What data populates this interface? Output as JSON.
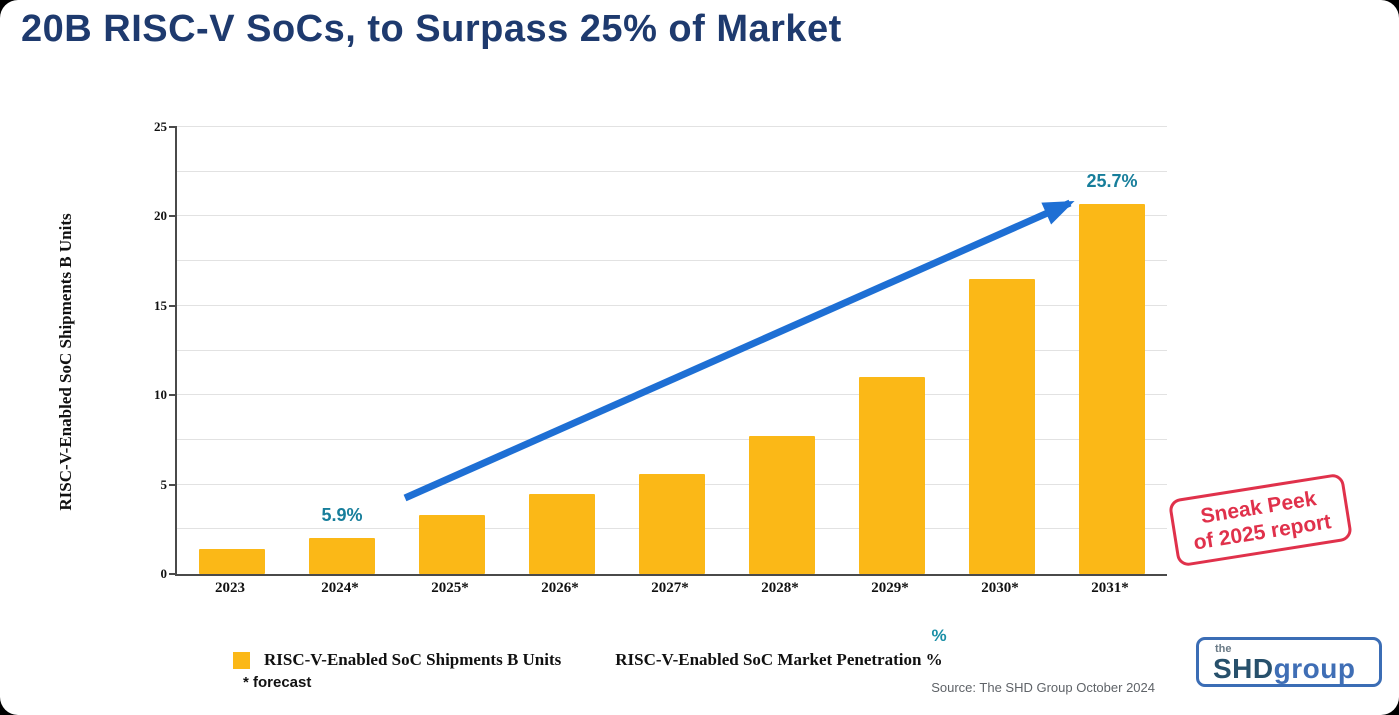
{
  "page": {
    "title": "20B RISC-V SoCs, to Surpass 25% of Market"
  },
  "chart_data": {
    "type": "bar",
    "categories": [
      "2023",
      "2024*",
      "2025*",
      "2026*",
      "2027*",
      "2028*",
      "2029*",
      "2030*",
      "2031*"
    ],
    "values": [
      1.4,
      2.0,
      3.3,
      4.5,
      5.6,
      7.7,
      11.0,
      16.5,
      20.7
    ],
    "title": "",
    "xlabel": "",
    "ylabel": "RISC-V-Enabled SoC Shipments B Units",
    "ylim": [
      0,
      25
    ],
    "yticks": [
      0,
      5,
      10,
      15,
      20,
      25
    ],
    "grid": "horizontal",
    "legend_position": "bottom",
    "bar_color": "#FBB817",
    "annotations": [
      {
        "category": "2024*",
        "text": "5.9%",
        "color": "#177E9B"
      },
      {
        "category": "2031*",
        "text": "25.7%",
        "color": "#177E9B"
      }
    ],
    "trend_arrow": {
      "color": "#1E6FD4",
      "from_category": "2024*",
      "to_category": "2031*"
    }
  },
  "stamp": {
    "line1": "Sneak Peek",
    "line2": "of 2025 report",
    "color": "#E0314B"
  },
  "legend": {
    "shipments_label": "RISC-V-Enabled SoC Shipments B Units",
    "penetration_label": "RISC-V-Enabled SoC Market Penetration %",
    "penetration_pct_mark": "%",
    "pct_mark_color": "#1A8FA6"
  },
  "footnote": "* forecast",
  "source": "Source: The SHD Group October 2024",
  "logo": {
    "prefix": "the",
    "name_bold": "SHD",
    "name_light": "group"
  }
}
